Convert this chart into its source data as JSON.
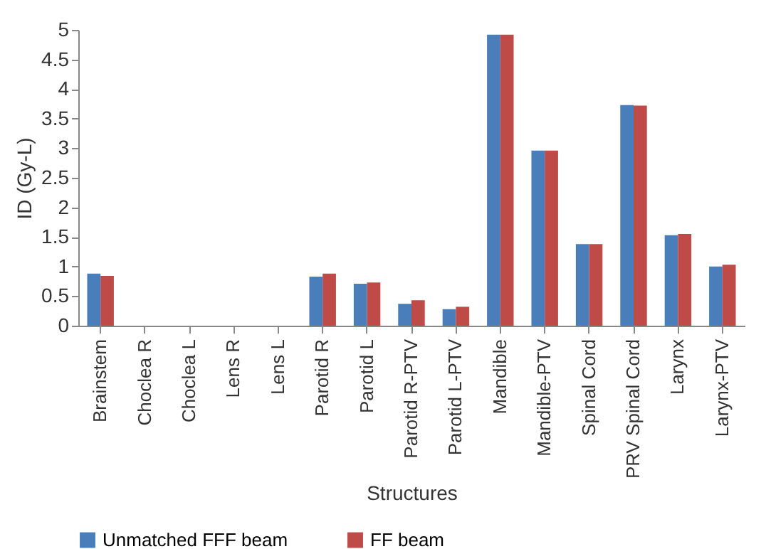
{
  "chart_data": {
    "type": "bar",
    "xlabel": "Structures",
    "ylabel": "ID (Gy-L)",
    "categories": [
      "Brainstem",
      "Choclea R",
      "Choclea L",
      "Lens R",
      "Lens L",
      "Parotid R",
      "Parotid L",
      "Parotid R-PTV",
      "Parotid L-PTV",
      "Mandible",
      "Mandible-PTV",
      "Spinal Cord",
      "PRV Spinal Cord",
      "Larynx",
      "Larynx-PTV"
    ],
    "series": [
      {
        "name": "Unmatched FFF beam",
        "color": "#4a7ebb",
        "values": [
          0.88,
          0,
          0,
          0,
          0,
          0.83,
          0.71,
          0.37,
          0.28,
          4.92,
          2.96,
          1.38,
          3.73,
          1.53,
          1.0
        ]
      },
      {
        "name": "FF beam",
        "color": "#be4b48",
        "values": [
          0.84,
          0,
          0,
          0,
          0,
          0.88,
          0.73,
          0.43,
          0.32,
          4.92,
          2.96,
          1.38,
          3.72,
          1.55,
          1.03
        ]
      }
    ],
    "ylim": [
      0,
      5
    ],
    "yticks": [
      0,
      0.5,
      1,
      1.5,
      2,
      2.5,
      3,
      3.5,
      4,
      4.5,
      5
    ],
    "grid": false,
    "legend": "bottom"
  }
}
